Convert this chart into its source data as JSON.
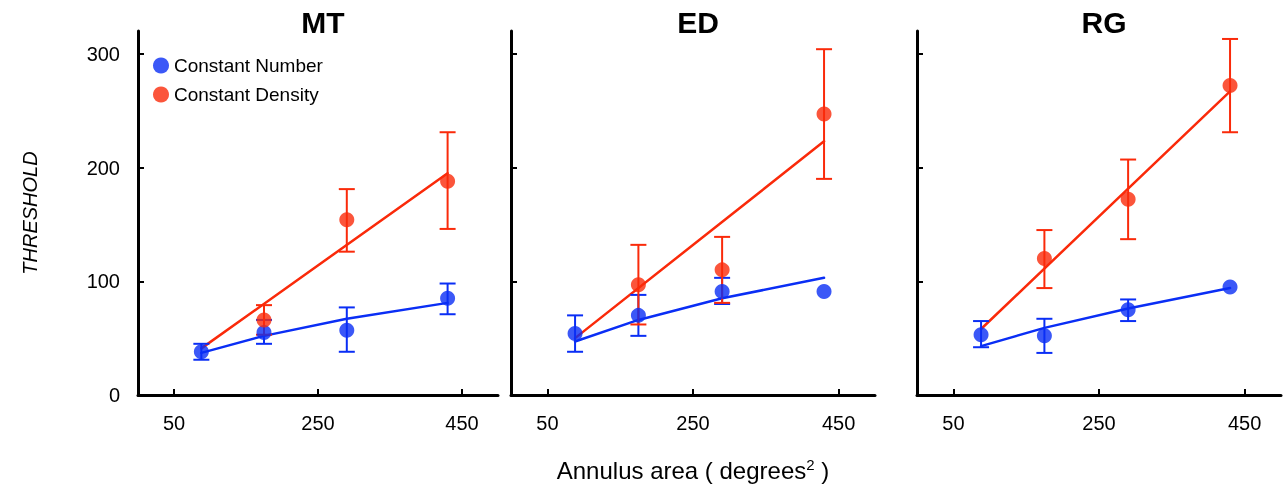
{
  "chart_data": [
    {
      "type": "scatter",
      "title": "MT",
      "ylabel": "THRESHOLD",
      "xlim": [
        0,
        500
      ],
      "xticks": [
        50,
        250,
        450
      ],
      "ylim": [
        0,
        320
      ],
      "yticks": [
        0,
        100,
        200,
        300
      ],
      "grid": false,
      "legend": "top left",
      "marker": "circle",
      "series": [
        {
          "name": "Constant Number",
          "color": "#0a2ef5",
          "x": [
            88,
            175,
            290,
            430
          ],
          "values": [
            38,
            55,
            57,
            85
          ],
          "errors": [
            [
              31,
              45
            ],
            [
              45,
              66
            ],
            [
              38,
              77
            ],
            [
              71,
              98
            ]
          ]
        },
        {
          "name": "Constant Density",
          "color": "#fa2a0a",
          "x": [
            175,
            290,
            430
          ],
          "values": [
            66,
            154,
            188
          ],
          "errors": [
            [
              53,
              79
            ],
            [
              126,
              181
            ],
            [
              146,
              231
            ]
          ]
        },
        {
          "type": "line",
          "color": "#0a2ef5",
          "marker": "none",
          "x": [
            88,
            175,
            290,
            430
          ],
          "values": [
            37,
            52,
            67,
            81
          ]
        },
        {
          "type": "line",
          "color": "#fa2a0a",
          "marker": "none",
          "x": [
            88,
            430
          ],
          "values": [
            41,
            195
          ]
        }
      ]
    },
    {
      "type": "scatter",
      "title": "ED",
      "xlabel": "Annulus area ( degrees$^{2}$ )",
      "xlim": [
        0,
        500
      ],
      "xticks": [
        50,
        250,
        450
      ],
      "ylim": [
        0,
        320
      ],
      "yticks": [
        0,
        100,
        200,
        300
      ],
      "grid": false,
      "tick_labels": "x",
      "marker": "circle",
      "series": [
        {
          "color": "#0a2ef5",
          "x": [
            88,
            175,
            290,
            430
          ],
          "values": [
            54,
            70,
            91,
            91
          ],
          "errors": [
            [
              38,
              70
            ],
            [
              52,
              88
            ],
            [
              80,
              103
            ],
            null
          ]
        },
        {
          "color": "#fa2a0a",
          "x": [
            175,
            290,
            430
          ],
          "values": [
            97,
            110,
            247
          ],
          "errors": [
            [
              62,
              132
            ],
            [
              81,
              139
            ],
            [
              190,
              304
            ]
          ]
        },
        {
          "type": "line",
          "color": "#0a2ef5",
          "marker": "none",
          "x": [
            88,
            175,
            290,
            430
          ],
          "values": [
            47,
            66,
            85,
            103
          ]
        },
        {
          "type": "line",
          "color": "#fa2a0a",
          "marker": "none",
          "x": [
            88,
            430
          ],
          "values": [
            50,
            223
          ]
        }
      ]
    },
    {
      "type": "scatter",
      "title": "RG",
      "xlim": [
        0,
        500
      ],
      "xticks": [
        50,
        250,
        450
      ],
      "ylim": [
        0,
        320
      ],
      "yticks": [
        0,
        100,
        200,
        300
      ],
      "grid": false,
      "tick_labels": "x",
      "marker": "circle",
      "series": [
        {
          "color": "#0a2ef5",
          "x": [
            88,
            175,
            290,
            430
          ],
          "values": [
            53,
            52,
            75,
            95
          ],
          "errors": [
            [
              42,
              65
            ],
            [
              37,
              67
            ],
            [
              65,
              84
            ],
            null
          ]
        },
        {
          "color": "#fa2a0a",
          "x": [
            175,
            290,
            430
          ],
          "values": [
            120,
            172,
            272
          ],
          "errors": [
            [
              94,
              145
            ],
            [
              137,
              207
            ],
            [
              231,
              313
            ]
          ]
        },
        {
          "type": "line",
          "color": "#0a2ef5",
          "marker": "none",
          "x": [
            88,
            175,
            290,
            430
          ],
          "values": [
            43,
            59,
            76,
            94
          ]
        },
        {
          "type": "line",
          "color": "#fa2a0a",
          "marker": "none",
          "x": [
            88,
            430
          ],
          "values": [
            58,
            267
          ]
        }
      ]
    }
  ]
}
